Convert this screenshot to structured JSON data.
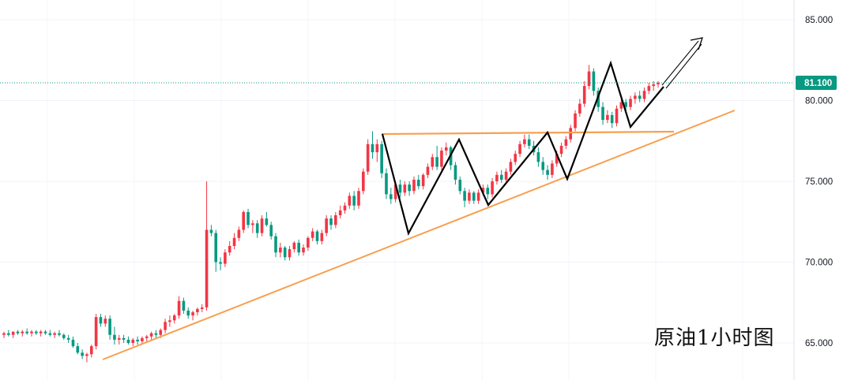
{
  "chart_data": {
    "type": "candlestick",
    "title": "原油1小时图",
    "y_axis": {
      "ticks": [
        "85.000",
        "80.000",
        "75.000",
        "70.000",
        "65.000"
      ],
      "tick_values": [
        85,
        80,
        75,
        70,
        65
      ],
      "range": [
        62.7,
        86.2
      ],
      "position": "right"
    },
    "last_price": {
      "label": "81.100",
      "value": 81.1,
      "color": "#089981"
    },
    "colors": {
      "up": "#f23645",
      "down": "#089981",
      "trendline": "#f7a050",
      "pattern": "#000000"
    },
    "grid": true,
    "candles": [
      [
        65.5,
        65.7,
        65.3,
        65.6
      ],
      [
        65.6,
        65.8,
        65.4,
        65.5
      ],
      [
        65.5,
        65.7,
        65.3,
        65.7
      ],
      [
        65.7,
        65.8,
        65.5,
        65.6
      ],
      [
        65.6,
        65.8,
        65.4,
        65.7
      ],
      [
        65.7,
        65.9,
        65.5,
        65.6
      ],
      [
        65.6,
        65.8,
        65.4,
        65.7
      ],
      [
        65.7,
        65.8,
        65.5,
        65.6
      ],
      [
        65.6,
        65.8,
        65.4,
        65.7
      ],
      [
        65.7,
        65.8,
        65.5,
        65.6
      ],
      [
        65.6,
        65.8,
        65.4,
        65.5
      ],
      [
        65.5,
        65.7,
        65.3,
        65.6
      ],
      [
        65.6,
        65.8,
        65.4,
        65.5
      ],
      [
        65.5,
        65.6,
        65.2,
        65.3
      ],
      [
        65.3,
        65.5,
        65.0,
        65.2
      ],
      [
        65.2,
        65.4,
        64.7,
        64.8
      ],
      [
        64.8,
        65.0,
        64.3,
        64.4
      ],
      [
        64.4,
        64.6,
        64.0,
        64.2
      ],
      [
        64.2,
        64.4,
        63.8,
        64.3
      ],
      [
        64.3,
        64.9,
        64.1,
        64.8
      ],
      [
        64.8,
        66.8,
        64.6,
        66.6
      ],
      [
        66.6,
        66.8,
        66.0,
        66.2
      ],
      [
        66.2,
        66.7,
        66.0,
        66.5
      ],
      [
        66.5,
        66.7,
        65.2,
        65.5
      ],
      [
        65.5,
        66.0,
        64.9,
        65.2
      ],
      [
        65.2,
        65.5,
        64.9,
        65.3
      ],
      [
        65.3,
        65.5,
        65.0,
        65.2
      ],
      [
        65.2,
        65.4,
        64.9,
        65.0
      ],
      [
        65.0,
        65.3,
        64.8,
        65.2
      ],
      [
        65.2,
        65.4,
        64.9,
        65.1
      ],
      [
        65.1,
        65.4,
        64.9,
        65.3
      ],
      [
        65.3,
        65.5,
        65.1,
        65.4
      ],
      [
        65.4,
        65.7,
        65.2,
        65.6
      ],
      [
        65.6,
        65.8,
        65.3,
        65.5
      ],
      [
        65.5,
        65.9,
        65.3,
        65.8
      ],
      [
        65.8,
        66.5,
        65.6,
        66.3
      ],
      [
        66.3,
        66.7,
        66.0,
        66.4
      ],
      [
        66.4,
        66.8,
        66.2,
        66.7
      ],
      [
        66.7,
        67.9,
        66.5,
        67.6
      ],
      [
        67.6,
        67.8,
        66.8,
        67.0
      ],
      [
        67.0,
        67.2,
        66.5,
        66.7
      ],
      [
        66.7,
        67.0,
        66.4,
        66.9
      ],
      [
        66.9,
        67.2,
        66.7,
        67.1
      ],
      [
        67.1,
        67.4,
        66.9,
        67.2
      ],
      [
        67.2,
        75.0,
        67.0,
        72.0
      ],
      [
        72.0,
        72.3,
        71.6,
        71.8
      ],
      [
        71.8,
        72.0,
        69.4,
        70.0
      ],
      [
        70.0,
        70.3,
        69.5,
        69.9
      ],
      [
        69.9,
        70.8,
        69.7,
        70.6
      ],
      [
        70.6,
        71.3,
        70.4,
        71.0
      ],
      [
        71.0,
        71.8,
        70.8,
        71.5
      ],
      [
        71.5,
        72.2,
        71.3,
        72.0
      ],
      [
        72.0,
        73.2,
        71.8,
        73.1
      ],
      [
        73.1,
        73.3,
        72.1,
        72.3
      ],
      [
        72.3,
        72.6,
        71.8,
        72.4
      ],
      [
        72.4,
        72.6,
        71.5,
        71.8
      ],
      [
        71.8,
        72.9,
        71.6,
        72.7
      ],
      [
        72.7,
        73.1,
        72.2,
        72.3
      ],
      [
        72.3,
        72.5,
        71.4,
        71.6
      ],
      [
        71.6,
        71.8,
        70.3,
        70.6
      ],
      [
        70.6,
        71.2,
        70.3,
        70.9
      ],
      [
        70.9,
        71.0,
        70.1,
        70.3
      ],
      [
        70.3,
        71.0,
        70.1,
        70.8
      ],
      [
        70.8,
        71.3,
        70.6,
        71.2
      ],
      [
        71.2,
        71.4,
        70.4,
        70.6
      ],
      [
        70.6,
        71.1,
        70.4,
        70.9
      ],
      [
        70.9,
        71.6,
        70.7,
        71.5
      ],
      [
        71.5,
        72.1,
        71.3,
        71.9
      ],
      [
        71.9,
        72.0,
        71.1,
        71.3
      ],
      [
        71.3,
        72.0,
        71.1,
        71.8
      ],
      [
        71.8,
        72.9,
        71.6,
        72.7
      ],
      [
        72.7,
        72.9,
        72.0,
        72.3
      ],
      [
        72.3,
        73.1,
        72.1,
        72.9
      ],
      [
        72.9,
        73.5,
        72.7,
        73.2
      ],
      [
        73.2,
        73.7,
        73.0,
        73.5
      ],
      [
        73.5,
        74.3,
        73.3,
        74.1
      ],
      [
        74.1,
        74.4,
        73.2,
        73.5
      ],
      [
        73.5,
        74.6,
        73.3,
        74.4
      ],
      [
        74.4,
        75.8,
        74.2,
        75.6
      ],
      [
        75.6,
        77.6,
        75.4,
        77.3
      ],
      [
        77.3,
        78.1,
        76.4,
        76.8
      ],
      [
        76.8,
        77.6,
        76.2,
        77.3
      ],
      [
        77.3,
        77.5,
        75.2,
        75.5
      ],
      [
        75.5,
        75.8,
        73.9,
        74.2
      ],
      [
        74.2,
        74.6,
        73.6,
        73.9
      ],
      [
        73.9,
        75.0,
        73.7,
        74.8
      ],
      [
        74.8,
        75.1,
        74.0,
        74.3
      ],
      [
        74.3,
        75.0,
        74.1,
        74.8
      ],
      [
        74.8,
        75.0,
        74.1,
        74.4
      ],
      [
        74.4,
        75.3,
        74.2,
        75.1
      ],
      [
        75.1,
        75.4,
        74.5,
        74.7
      ],
      [
        74.7,
        75.5,
        74.5,
        75.4
      ],
      [
        75.4,
        76.1,
        75.2,
        75.9
      ],
      [
        75.9,
        76.7,
        75.7,
        76.5
      ],
      [
        76.5,
        77.2,
        75.7,
        75.9
      ],
      [
        75.9,
        77.1,
        75.7,
        76.9
      ],
      [
        76.9,
        77.4,
        76.6,
        77.1
      ],
      [
        77.1,
        77.2,
        75.7,
        76.0
      ],
      [
        76.0,
        76.2,
        74.8,
        75.1
      ],
      [
        75.1,
        75.3,
        74.2,
        74.4
      ],
      [
        74.4,
        74.6,
        73.4,
        73.8
      ],
      [
        73.8,
        74.5,
        73.6,
        74.3
      ],
      [
        74.3,
        74.4,
        73.6,
        73.8
      ],
      [
        73.8,
        74.5,
        73.6,
        74.3
      ],
      [
        74.3,
        74.8,
        74.1,
        74.6
      ],
      [
        74.6,
        74.8,
        73.9,
        74.2
      ],
      [
        74.2,
        75.2,
        74.0,
        75.0
      ],
      [
        75.0,
        75.6,
        74.8,
        75.4
      ],
      [
        75.4,
        75.7,
        74.9,
        75.1
      ],
      [
        75.1,
        75.8,
        74.9,
        75.6
      ],
      [
        75.6,
        76.4,
        75.4,
        76.2
      ],
      [
        76.2,
        76.9,
        76.0,
        76.7
      ],
      [
        76.7,
        77.5,
        76.5,
        77.3
      ],
      [
        77.3,
        77.9,
        77.1,
        77.6
      ],
      [
        77.6,
        77.9,
        77.0,
        77.2
      ],
      [
        77.2,
        77.5,
        76.6,
        76.8
      ],
      [
        76.8,
        77.1,
        75.9,
        76.2
      ],
      [
        76.2,
        76.5,
        75.4,
        75.7
      ],
      [
        75.7,
        76.0,
        75.1,
        75.4
      ],
      [
        75.4,
        76.3,
        75.2,
        76.1
      ],
      [
        76.1,
        76.9,
        75.9,
        76.7
      ],
      [
        76.7,
        77.4,
        76.5,
        77.2
      ],
      [
        77.2,
        77.8,
        77.0,
        77.6
      ],
      [
        77.6,
        78.5,
        77.4,
        78.3
      ],
      [
        78.3,
        79.4,
        78.1,
        79.2
      ],
      [
        79.2,
        80.1,
        79.0,
        79.8
      ],
      [
        79.8,
        81.2,
        79.6,
        80.9
      ],
      [
        80.9,
        82.2,
        80.7,
        81.8
      ],
      [
        81.8,
        82.0,
        80.3,
        80.6
      ],
      [
        80.6,
        80.8,
        79.3,
        79.6
      ],
      [
        79.6,
        79.9,
        78.5,
        78.8
      ],
      [
        78.8,
        79.4,
        78.6,
        79.1
      ],
      [
        79.1,
        79.3,
        78.3,
        78.6
      ],
      [
        78.6,
        79.7,
        78.4,
        79.5
      ],
      [
        79.5,
        80.1,
        79.3,
        79.9
      ],
      [
        79.9,
        80.1,
        79.4,
        79.6
      ],
      [
        79.6,
        80.3,
        79.4,
        80.1
      ],
      [
        80.1,
        80.5,
        79.8,
        80.3
      ],
      [
        80.3,
        80.6,
        79.9,
        80.1
      ],
      [
        80.1,
        80.8,
        79.9,
        80.6
      ],
      [
        80.6,
        81.1,
        80.4,
        80.9
      ],
      [
        80.9,
        81.2,
        80.6,
        81.0
      ],
      [
        81.0,
        81.2,
        80.8,
        81.1
      ]
    ]
  }
}
